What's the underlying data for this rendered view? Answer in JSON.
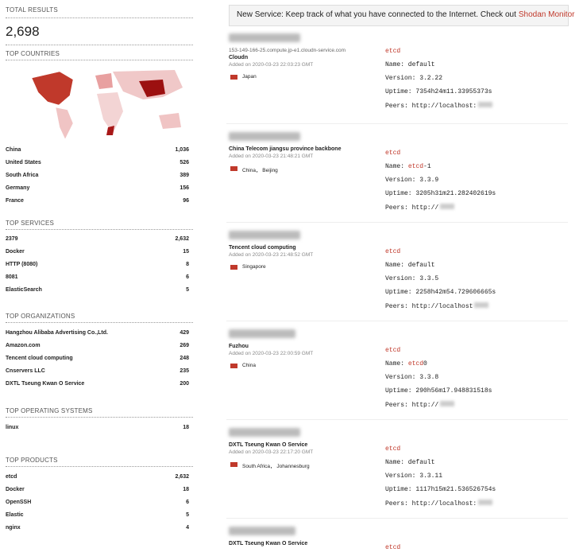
{
  "summary": {
    "label": "TOTAL RESULTS",
    "value": "2,698"
  },
  "facets": [
    {
      "title": "TOP COUNTRIES",
      "rows": [
        [
          "China",
          "1,036"
        ],
        [
          "United States",
          "526"
        ],
        [
          "South Africa",
          "389"
        ],
        [
          "Germany",
          "156"
        ],
        [
          "France",
          "96"
        ]
      ]
    },
    {
      "title": "TOP SERVICES",
      "rows": [
        [
          "2379",
          "2,632"
        ],
        [
          "Docker",
          "15"
        ],
        [
          "HTTP (8080)",
          "8"
        ],
        [
          "8081",
          "6"
        ],
        [
          "ElasticSearch",
          "5"
        ]
      ]
    },
    {
      "title": "TOP ORGANIZATIONS",
      "rows": [
        [
          "Hangzhou Alibaba Advertising Co.,Ltd.",
          "429"
        ],
        [
          "Amazon.com",
          "269"
        ],
        [
          "Tencent cloud computing",
          "248"
        ],
        [
          "Cnservers LLC",
          "235"
        ],
        [
          "DXTL Tseung Kwan O Service",
          "200"
        ]
      ]
    },
    {
      "title": "TOP OPERATING SYSTEMS",
      "rows": [
        [
          "linux",
          "18"
        ]
      ]
    },
    {
      "title": "TOP PRODUCTS",
      "rows": [
        [
          "etcd",
          "2,632"
        ],
        [
          "Docker",
          "18"
        ],
        [
          "OpenSSH",
          "6"
        ],
        [
          "Elastic",
          "5"
        ],
        [
          "nginx",
          "4"
        ]
      ]
    }
  ],
  "banner": {
    "text": "New Service: Keep track of what you have connected to the Internet. Check out",
    "link": "Shodan Monitor"
  },
  "results": [
    {
      "hostname": "153-149-166-25.compute.jp-e1.cloudn-service.com",
      "org": "Cloudn",
      "added": "Added on 2020-03-23 22:03:23 GMT",
      "location": "Japan",
      "service": "etcd",
      "lines": [
        [
          "Name: default"
        ],
        [
          "Version: 3.2.22"
        ],
        [
          "Uptime: 7354h24m11.33955373s"
        ],
        [
          "Peers: http://localhost:"
        ]
      ]
    },
    {
      "org": "China Telecom jiangsu province backbone",
      "added": "Added on 2020-03-23 21:48:21 GMT",
      "location": "China， Beijing",
      "service": "etcd",
      "lines": [
        [
          "Name: ",
          "etcd",
          "-1"
        ],
        [
          "Version: 3.3.9"
        ],
        [
          "Uptime: 3205h31m21.282402619s"
        ],
        [
          "Peers: http://"
        ]
      ]
    },
    {
      "org": "Tencent cloud computing",
      "added": "Added on 2020-03-23 21:48:52 GMT",
      "location": "Singapore",
      "service": "etcd",
      "lines": [
        [
          "Name: default"
        ],
        [
          "Version: 3.3.5"
        ],
        [
          "Uptime: 2258h42m54.729606665s"
        ],
        [
          "Peers: http://localhost"
        ]
      ]
    },
    {
      "org": "Fuzhou",
      "added": "Added on 2020-03-23 22:00:59 GMT",
      "location": "China",
      "service": "etcd",
      "lines": [
        [
          "Name: ",
          "etcd",
          "0"
        ],
        [
          "Version: 3.3.8"
        ],
        [
          "Uptime: 290h56m17.948831518s"
        ],
        [
          "Peers: http://"
        ]
      ]
    },
    {
      "org": "DXTL Tseung Kwan O Service",
      "added": "Added on 2020-03-23 22:17:20 GMT",
      "location": "South Africa， Johannesburg",
      "service": "etcd",
      "lines": [
        [
          "Name: default"
        ],
        [
          "Version: 3.3.11"
        ],
        [
          "Uptime: 1117h15m21.536526754s"
        ],
        [
          "Peers: http://localhost:"
        ]
      ]
    },
    {
      "org": "DXTL Tseung Kwan O Service",
      "service": "etcd",
      "lines": []
    }
  ]
}
